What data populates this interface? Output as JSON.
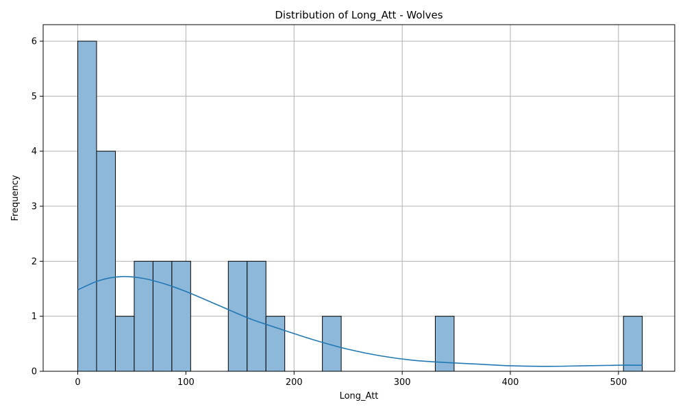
{
  "chart_data": {
    "type": "bar",
    "title": "Distribution of Long_Att - Wolves",
    "xlabel": "Long_Att",
    "ylabel": "Frequency",
    "xlim": [
      -32,
      552
    ],
    "ylim": [
      0,
      6.3
    ],
    "xticks": [
      0,
      100,
      200,
      300,
      400,
      500
    ],
    "yticks": [
      0,
      1,
      2,
      3,
      4,
      5,
      6
    ],
    "grid": true,
    "bin_width": 17.4,
    "bins": [
      {
        "start": 0.0,
        "end": 17.4,
        "count": 6
      },
      {
        "start": 17.4,
        "end": 34.8,
        "count": 4
      },
      {
        "start": 34.8,
        "end": 52.2,
        "count": 1
      },
      {
        "start": 52.2,
        "end": 69.6,
        "count": 2
      },
      {
        "start": 69.6,
        "end": 87.0,
        "count": 2
      },
      {
        "start": 87.0,
        "end": 104.4,
        "count": 2
      },
      {
        "start": 104.4,
        "end": 121.8,
        "count": 0
      },
      {
        "start": 121.8,
        "end": 139.2,
        "count": 0
      },
      {
        "start": 139.2,
        "end": 156.6,
        "count": 2
      },
      {
        "start": 156.6,
        "end": 174.0,
        "count": 2
      },
      {
        "start": 174.0,
        "end": 191.4,
        "count": 1
      },
      {
        "start": 191.4,
        "end": 208.8,
        "count": 0
      },
      {
        "start": 208.8,
        "end": 226.2,
        "count": 0
      },
      {
        "start": 226.2,
        "end": 243.6,
        "count": 1
      },
      {
        "start": 243.6,
        "end": 261.0,
        "count": 0
      },
      {
        "start": 261.0,
        "end": 278.4,
        "count": 0
      },
      {
        "start": 278.4,
        "end": 295.8,
        "count": 0
      },
      {
        "start": 295.8,
        "end": 313.2,
        "count": 0
      },
      {
        "start": 313.2,
        "end": 330.6,
        "count": 0
      },
      {
        "start": 330.6,
        "end": 348.0,
        "count": 1
      },
      {
        "start": 348.0,
        "end": 365.4,
        "count": 0
      },
      {
        "start": 365.4,
        "end": 382.8,
        "count": 0
      },
      {
        "start": 382.8,
        "end": 400.2,
        "count": 0
      },
      {
        "start": 400.2,
        "end": 417.6,
        "count": 0
      },
      {
        "start": 417.6,
        "end": 435.0,
        "count": 0
      },
      {
        "start": 435.0,
        "end": 452.4,
        "count": 0
      },
      {
        "start": 452.4,
        "end": 469.8,
        "count": 0
      },
      {
        "start": 469.8,
        "end": 487.2,
        "count": 0
      },
      {
        "start": 487.2,
        "end": 504.6,
        "count": 0
      },
      {
        "start": 504.6,
        "end": 522.0,
        "count": 1
      }
    ],
    "kde": {
      "x": [
        0,
        20,
        40,
        60,
        80,
        100,
        130,
        160,
        190,
        220,
        250,
        280,
        310,
        340,
        370,
        400,
        435,
        470,
        500,
        522
      ],
      "y": [
        1.48,
        1.65,
        1.72,
        1.69,
        1.59,
        1.45,
        1.2,
        0.95,
        0.75,
        0.56,
        0.4,
        0.28,
        0.2,
        0.16,
        0.13,
        0.1,
        0.09,
        0.1,
        0.11,
        0.11
      ]
    },
    "colors": {
      "bar_fill": "#8db8da",
      "bar_edge": "#000000",
      "kde_line": "#1f77b4",
      "grid": "#b0b0b0"
    }
  }
}
